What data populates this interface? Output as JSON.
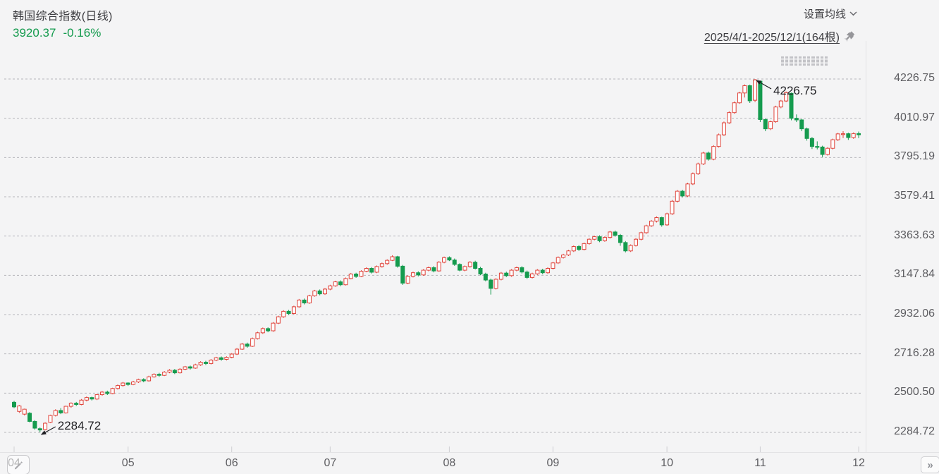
{
  "header": {
    "title": "韩国综合指数(日线)",
    "price": "3920.37",
    "change": "-0.16%"
  },
  "toolbar": {
    "ma_settings": "设置均线",
    "date_range": "2025/4/1-2025/12/1(164根)"
  },
  "footer": {
    "next_glyph": "»"
  },
  "colors": {
    "background": "#f4f4f5",
    "up": "#e0433a",
    "down": "#159b4e",
    "price_text": "#159b4e",
    "grid": "#b6b6ba",
    "axis_text": "#5d5d61",
    "annotation": "#1f1f23",
    "axis_line": "#e3e3e5",
    "tick": "#cfcfd2"
  },
  "chart_data": {
    "type": "candlestick",
    "title": "韩国综合指数(日线)",
    "period": "2025/4/1-2025/12/1",
    "bars_count": 164,
    "last_close": 3920.37,
    "last_change_pct": -0.16,
    "up_style": "hollow-red",
    "down_style": "solid-green",
    "grid": "horizontal-dashed",
    "ylim": [
      2284.72,
      4226.75
    ],
    "y_ticks": [
      "4226.75",
      "4010.97",
      "3795.19",
      "3579.41",
      "3363.63",
      "3147.84",
      "2932.06",
      "2716.28",
      "2500.50",
      "2284.72"
    ],
    "x_ticks": [
      {
        "label": "04",
        "index": 0
      },
      {
        "label": "05",
        "index": 22
      },
      {
        "label": "06",
        "index": 42
      },
      {
        "label": "07",
        "index": 61
      },
      {
        "label": "08",
        "index": 84
      },
      {
        "label": "09",
        "index": 104
      },
      {
        "label": "10",
        "index": 126
      },
      {
        "label": "11",
        "index": 144
      },
      {
        "label": "12",
        "index": 163
      }
    ],
    "markers": [
      {
        "kind": "high",
        "label": "4226.75",
        "value": 4226.75,
        "index": 143
      },
      {
        "kind": "low",
        "label": "2284.72",
        "value": 2284.72,
        "index": 5
      }
    ],
    "candles": [
      [
        2450,
        2458,
        2418,
        2425
      ],
      [
        2400,
        2435,
        2392,
        2430
      ],
      [
        2385,
        2415,
        2378,
        2412
      ],
      [
        2390,
        2396,
        2340,
        2345
      ],
      [
        2345,
        2352,
        2300,
        2308
      ],
      [
        2305,
        2312,
        2284.72,
        2298
      ],
      [
        2300,
        2340,
        2296,
        2335
      ],
      [
        2340,
        2382,
        2336,
        2378
      ],
      [
        2378,
        2412,
        2372,
        2405
      ],
      [
        2405,
        2418,
        2385,
        2392
      ],
      [
        2392,
        2432,
        2388,
        2428
      ],
      [
        2428,
        2450,
        2420,
        2445
      ],
      [
        2445,
        2452,
        2430,
        2438
      ],
      [
        2438,
        2468,
        2434,
        2462
      ],
      [
        2462,
        2482,
        2455,
        2476
      ],
      [
        2476,
        2481,
        2460,
        2468
      ],
      [
        2468,
        2496,
        2462,
        2492
      ],
      [
        2492,
        2512,
        2486,
        2506
      ],
      [
        2506,
        2514,
        2490,
        2498
      ],
      [
        2498,
        2530,
        2494,
        2526
      ],
      [
        2526,
        2548,
        2520,
        2542
      ],
      [
        2542,
        2562,
        2536,
        2556
      ],
      [
        2556,
        2560,
        2540,
        2548
      ],
      [
        2548,
        2568,
        2544,
        2562
      ],
      [
        2562,
        2580,
        2556,
        2575
      ],
      [
        2575,
        2582,
        2560,
        2568
      ],
      [
        2568,
        2596,
        2564,
        2590
      ],
      [
        2590,
        2610,
        2585,
        2604
      ],
      [
        2604,
        2612,
        2590,
        2598
      ],
      [
        2598,
        2622,
        2594,
        2616
      ],
      [
        2616,
        2632,
        2610,
        2626
      ],
      [
        2626,
        2633,
        2605,
        2612
      ],
      [
        2612,
        2638,
        2608,
        2632
      ],
      [
        2632,
        2650,
        2626,
        2645
      ],
      [
        2645,
        2652,
        2630,
        2638
      ],
      [
        2638,
        2662,
        2634,
        2656
      ],
      [
        2656,
        2676,
        2650,
        2670
      ],
      [
        2670,
        2678,
        2655,
        2663
      ],
      [
        2663,
        2688,
        2658,
        2682
      ],
      [
        2682,
        2700,
        2676,
        2695
      ],
      [
        2695,
        2702,
        2678,
        2686
      ],
      [
        2686,
        2703,
        2680,
        2697
      ],
      [
        2697,
        2720,
        2692,
        2715
      ],
      [
        2715,
        2748,
        2710,
        2742
      ],
      [
        2742,
        2776,
        2738,
        2770
      ],
      [
        2770,
        2778,
        2750,
        2758
      ],
      [
        2758,
        2806,
        2754,
        2800
      ],
      [
        2800,
        2838,
        2795,
        2832
      ],
      [
        2832,
        2861,
        2826,
        2855
      ],
      [
        2855,
        2862,
        2835,
        2843
      ],
      [
        2843,
        2891,
        2838,
        2885
      ],
      [
        2885,
        2926,
        2880,
        2920
      ],
      [
        2920,
        2956,
        2914,
        2950
      ],
      [
        2950,
        2958,
        2930,
        2938
      ],
      [
        2938,
        2981,
        2933,
        2975
      ],
      [
        2975,
        3018,
        2970,
        3012
      ],
      [
        3012,
        3020,
        2988,
        2996
      ],
      [
        2996,
        3041,
        2991,
        3035
      ],
      [
        3035,
        3068,
        3030,
        3062
      ],
      [
        3062,
        3070,
        3038,
        3046
      ],
      [
        3046,
        3078,
        3040,
        3072
      ],
      [
        3072,
        3096,
        3066,
        3090
      ],
      [
        3090,
        3118,
        3085,
        3112
      ],
      [
        3112,
        3120,
        3088,
        3096
      ],
      [
        3096,
        3136,
        3092,
        3130
      ],
      [
        3130,
        3161,
        3126,
        3155
      ],
      [
        3155,
        3162,
        3134,
        3142
      ],
      [
        3142,
        3176,
        3138,
        3170
      ],
      [
        3170,
        3192,
        3165,
        3186
      ],
      [
        3186,
        3193,
        3158,
        3165
      ],
      [
        3165,
        3202,
        3160,
        3196
      ],
      [
        3196,
        3218,
        3190,
        3212
      ],
      [
        3212,
        3236,
        3206,
        3230
      ],
      [
        3230,
        3258,
        3226,
        3250
      ],
      [
        3250,
        3255,
        3190,
        3198
      ],
      [
        3198,
        3205,
        3095,
        3105
      ],
      [
        3105,
        3148,
        3100,
        3142
      ],
      [
        3142,
        3168,
        3136,
        3162
      ],
      [
        3162,
        3170,
        3142,
        3150
      ],
      [
        3150,
        3182,
        3145,
        3176
      ],
      [
        3176,
        3196,
        3170,
        3190
      ],
      [
        3190,
        3198,
        3164,
        3172
      ],
      [
        3172,
        3226,
        3168,
        3220
      ],
      [
        3220,
        3251,
        3214,
        3245
      ],
      [
        3245,
        3252,
        3226,
        3232
      ],
      [
        3232,
        3240,
        3200,
        3208
      ],
      [
        3208,
        3214,
        3170,
        3176
      ],
      [
        3176,
        3202,
        3170,
        3196
      ],
      [
        3196,
        3226,
        3190,
        3220
      ],
      [
        3220,
        3228,
        3180,
        3186
      ],
      [
        3186,
        3194,
        3148,
        3155
      ],
      [
        3155,
        3162,
        3115,
        3122
      ],
      [
        3122,
        3130,
        3042,
        3076
      ],
      [
        3076,
        3132,
        3070,
        3126
      ],
      [
        3126,
        3166,
        3120,
        3160
      ],
      [
        3160,
        3168,
        3138,
        3146
      ],
      [
        3146,
        3182,
        3140,
        3176
      ],
      [
        3176,
        3196,
        3170,
        3190
      ],
      [
        3190,
        3198,
        3158,
        3166
      ],
      [
        3166,
        3174,
        3128,
        3136
      ],
      [
        3136,
        3162,
        3130,
        3156
      ],
      [
        3156,
        3182,
        3150,
        3176
      ],
      [
        3176,
        3184,
        3154,
        3162
      ],
      [
        3162,
        3192,
        3156,
        3186
      ],
      [
        3186,
        3222,
        3180,
        3216
      ],
      [
        3216,
        3252,
        3210,
        3246
      ],
      [
        3246,
        3266,
        3240,
        3260
      ],
      [
        3260,
        3288,
        3254,
        3282
      ],
      [
        3282,
        3312,
        3276,
        3306
      ],
      [
        3306,
        3314,
        3282,
        3290
      ],
      [
        3290,
        3328,
        3285,
        3322
      ],
      [
        3322,
        3352,
        3316,
        3346
      ],
      [
        3346,
        3366,
        3340,
        3360
      ],
      [
        3360,
        3368,
        3330,
        3338
      ],
      [
        3338,
        3362,
        3332,
        3356
      ],
      [
        3356,
        3392,
        3350,
        3386
      ],
      [
        3386,
        3394,
        3360,
        3368
      ],
      [
        3368,
        3375,
        3310,
        3328
      ],
      [
        3328,
        3336,
        3274,
        3282
      ],
      [
        3282,
        3318,
        3276,
        3312
      ],
      [
        3312,
        3352,
        3306,
        3346
      ],
      [
        3346,
        3388,
        3340,
        3382
      ],
      [
        3382,
        3426,
        3376,
        3420
      ],
      [
        3420,
        3452,
        3414,
        3446
      ],
      [
        3446,
        3472,
        3438,
        3465
      ],
      [
        3465,
        3470,
        3415,
        3425
      ],
      [
        3425,
        3492,
        3420,
        3486
      ],
      [
        3486,
        3562,
        3480,
        3555
      ],
      [
        3555,
        3617,
        3548,
        3610
      ],
      [
        3610,
        3618,
        3576,
        3584
      ],
      [
        3584,
        3657,
        3578,
        3650
      ],
      [
        3650,
        3713,
        3644,
        3706
      ],
      [
        3706,
        3767,
        3700,
        3760
      ],
      [
        3760,
        3827,
        3754,
        3820
      ],
      [
        3820,
        3828,
        3778,
        3786
      ],
      [
        3786,
        3863,
        3780,
        3856
      ],
      [
        3856,
        3927,
        3850,
        3920
      ],
      [
        3920,
        3993,
        3914,
        3986
      ],
      [
        3986,
        4049,
        3980,
        4042
      ],
      [
        4042,
        4103,
        4036,
        4096
      ],
      [
        4096,
        4157,
        4090,
        4150
      ],
      [
        4150,
        4197,
        4125,
        4190
      ],
      [
        4190,
        4196,
        4095,
        4107
      ],
      [
        4110,
        4226.75,
        4100,
        4221.87
      ],
      [
        4215,
        4218,
        3990,
        4004
      ],
      [
        4004,
        4010,
        3940,
        3953
      ],
      [
        3953,
        3998,
        3946,
        3992
      ],
      [
        3992,
        4080,
        3986,
        4073
      ],
      [
        4073,
        4112,
        4066,
        4106
      ],
      [
        4106,
        4158,
        4100,
        4152
      ],
      [
        4148,
        4152,
        4000,
        4011
      ],
      [
        4011,
        4032,
        3990,
        4002
      ],
      [
        4002,
        4008,
        3940,
        3953
      ],
      [
        3953,
        3960,
        3888,
        3900
      ],
      [
        3900,
        3908,
        3842,
        3856
      ],
      [
        3856,
        3884,
        3840,
        3853
      ],
      [
        3853,
        3860,
        3798,
        3812
      ],
      [
        3812,
        3852,
        3806,
        3846
      ],
      [
        3846,
        3899,
        3840,
        3893
      ],
      [
        3893,
        3931,
        3886,
        3925
      ],
      [
        3925,
        3940,
        3902,
        3926
      ],
      [
        3926,
        3932,
        3892,
        3905
      ],
      [
        3905,
        3933,
        3898,
        3926.66
      ],
      [
        3926.66,
        3938,
        3902,
        3920.37
      ]
    ]
  }
}
